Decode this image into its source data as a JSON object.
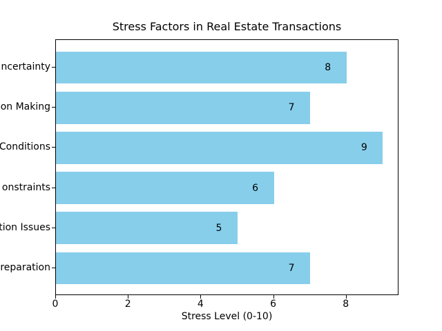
{
  "figure": {
    "background": "#ffffff",
    "text_color": "#000000",
    "spine_color": "#000000"
  },
  "chart_data": {
    "type": "bar",
    "orientation": "horizontal",
    "title": "Stress Factors in Real Estate Transactions",
    "xlabel": "Stress Level (0-10)",
    "ylabel": "",
    "categories": [
      "ncertainty",
      "on Making",
      "Conditions",
      "onstraints",
      "tion Issues",
      "reparation"
    ],
    "values": [
      8,
      7,
      9,
      6,
      5,
      7
    ],
    "bar_labels": [
      "8",
      "7",
      "9",
      "6",
      "5",
      "7"
    ],
    "xticks": [
      "0",
      "2",
      "4",
      "6",
      "8"
    ],
    "xtick_values": [
      0,
      2,
      4,
      6,
      8
    ],
    "xlim": [
      0,
      9.45
    ],
    "bar_color": "#87ceeb",
    "grid": false,
    "legend": false
  }
}
